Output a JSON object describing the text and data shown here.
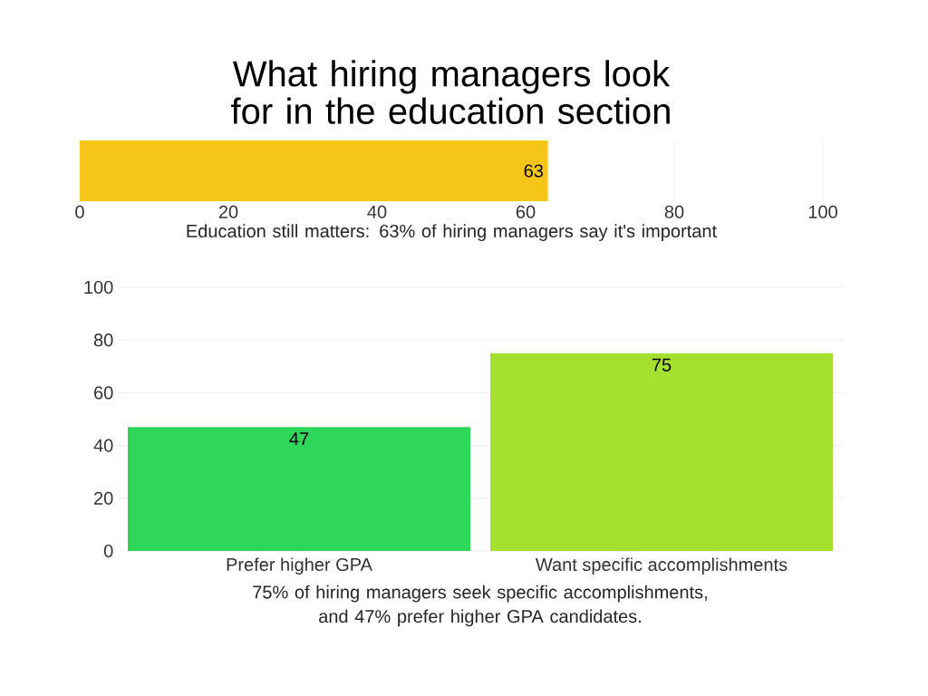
{
  "chart_data": [
    {
      "type": "bar",
      "title": "What hiring  managers look for in the education section",
      "orientation": "horizontal",
      "categories": [
        null
      ],
      "values": [
        63
      ],
      "color": "#f5c518",
      "xlim": [
        0,
        100
      ],
      "xticks": [
        0,
        20,
        40,
        60,
        80,
        100
      ],
      "grid": "x",
      "data_labels": true,
      "xlabel": "Education still matters: 63% of hiring managers say it's important"
    },
    {
      "type": "bar",
      "categories": [
        "Prefer higher GPA",
        "Want specific accomplishments"
      ],
      "values": [
        47,
        75
      ],
      "colors": [
        "#2ed65a",
        "#a6e02e"
      ],
      "ylim": [
        0,
        100
      ],
      "yticks": [
        0,
        20,
        40,
        60,
        80,
        100
      ],
      "grid": "y",
      "data_labels": true,
      "xlabel": "75% of hiring managers seek specific accomplishments, and 47% prefer higher GPA candidates."
    }
  ]
}
